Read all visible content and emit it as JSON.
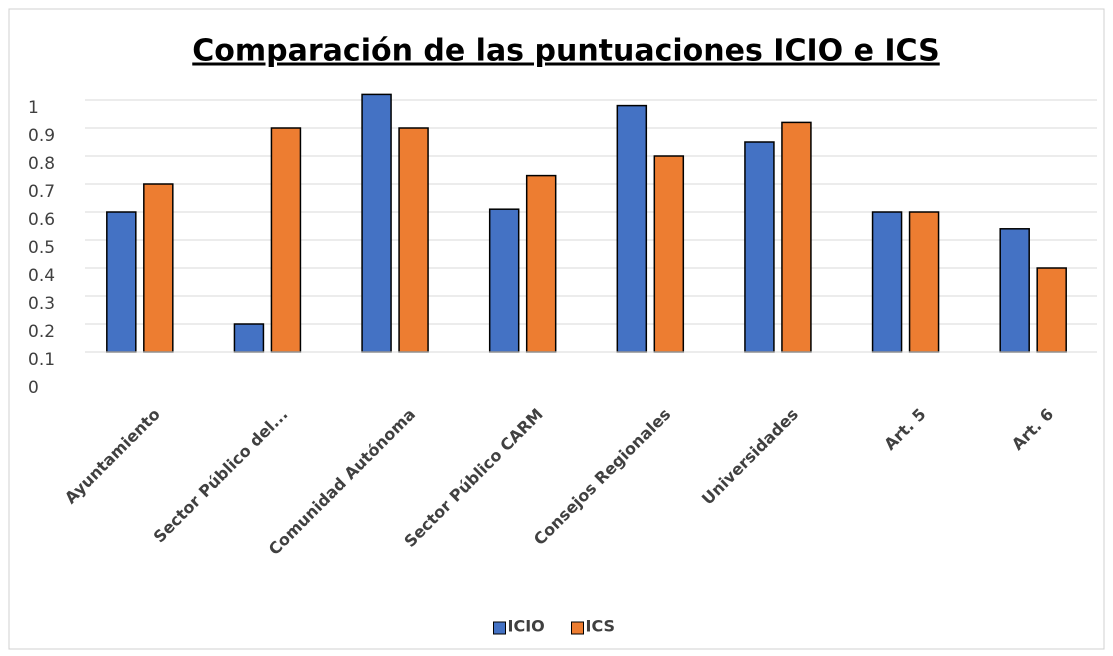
{
  "chart_data": {
    "type": "bar",
    "title": "Comparación de las puntuaciones ICIO e ICS",
    "categories": [
      "Ayuntamiento",
      "Sector Público del...",
      "Comunidad Autónoma",
      "Sector Público CARM",
      "Consejos Regionales",
      "Universidades",
      "Art. 5",
      "Art. 6"
    ],
    "series": [
      {
        "name": "ICIO",
        "color": "#4472c4",
        "values": [
          0.6,
          0.2,
          1.02,
          0.61,
          0.98,
          0.85,
          0.6,
          0.54
        ]
      },
      {
        "name": "ICS",
        "color": "#ed7d31",
        "values": [
          0.7,
          0.9,
          0.9,
          0.73,
          0.8,
          0.92,
          0.6,
          0.4
        ]
      }
    ],
    "ylim": [
      0,
      1.05
    ],
    "yticks": [
      0,
      0.1,
      0.2,
      0.3,
      0.4,
      0.5,
      0.6,
      0.7,
      0.8,
      0.9,
      1
    ],
    "x_axis_crosses": 0.1,
    "grid": true,
    "legend": "bottom"
  }
}
